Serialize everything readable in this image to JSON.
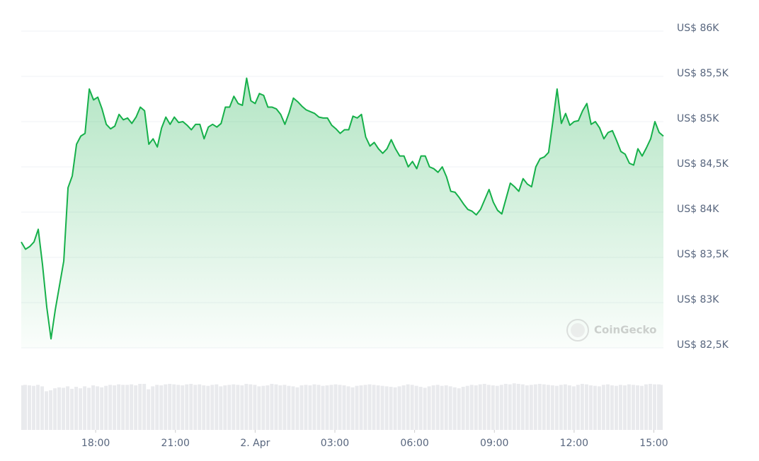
{
  "chart_data": {
    "type": "line",
    "watermark": "CoinGecko",
    "x": [
      15.2,
      15.36,
      15.52,
      15.68,
      15.84,
      16,
      16.16,
      16.32,
      16.48,
      16.64,
      16.8,
      16.96,
      17.12,
      17.28,
      17.44,
      17.6,
      17.76,
      17.92,
      18.08,
      18.24,
      18.4,
      18.56,
      18.72,
      18.88,
      19.04,
      19.2,
      19.36,
      19.52,
      19.68,
      19.84,
      20,
      20.16,
      20.32,
      20.48,
      20.64,
      20.8,
      20.96,
      21.12,
      21.28,
      21.44,
      21.6,
      21.76,
      21.92,
      22.08,
      22.24,
      22.4,
      22.56,
      22.72,
      22.88,
      23.04,
      23.2,
      23.36,
      23.52,
      23.68,
      23.84,
      24,
      24.16,
      24.32,
      24.48,
      24.64,
      24.8,
      24.96,
      25.12,
      25.28,
      25.44,
      25.6,
      25.76,
      25.92,
      26.08,
      26.24,
      26.4,
      26.56,
      26.72,
      26.88,
      27.04,
      27.2,
      27.36,
      27.52,
      27.68,
      27.84,
      28,
      28.16,
      28.32,
      28.48,
      28.64,
      28.8,
      28.96,
      29.12,
      29.28,
      29.44,
      29.6,
      29.76,
      29.92,
      30.08,
      30.24,
      30.4,
      30.56,
      30.72,
      30.88,
      31.04,
      31.2,
      31.36,
      31.52,
      31.68,
      31.84,
      32,
      32.16,
      32.32,
      32.48,
      32.64,
      32.8,
      32.96,
      33.12,
      33.28,
      33.44,
      33.6,
      33.76,
      33.92,
      34.08,
      34.24,
      34.4,
      34.56,
      34.72,
      34.88,
      35.04,
      35.2,
      35.36,
      35.52,
      35.68,
      35.84,
      36,
      36.16,
      36.32,
      36.48,
      36.64,
      36.8,
      36.96,
      37.12,
      37.28,
      37.44,
      37.6,
      37.76,
      37.92,
      38.08,
      38.24,
      38.4,
      38.56,
      38.72,
      38.88,
      39.04,
      39.2,
      39.36
    ],
    "series": [
      {
        "name": "Price",
        "color": "#16b04a",
        "values": [
          83670,
          83590,
          83620,
          83670,
          83810,
          83420,
          82950,
          82600,
          82920,
          83190,
          83460,
          84270,
          84400,
          84750,
          84840,
          84870,
          85360,
          85240,
          85270,
          85140,
          84970,
          84920,
          84950,
          85080,
          85020,
          85040,
          84980,
          85050,
          85160,
          85120,
          84750,
          84810,
          84720,
          84930,
          85050,
          84970,
          85050,
          84990,
          85000,
          84960,
          84910,
          84970,
          84970,
          84810,
          84940,
          84970,
          84940,
          84980,
          85160,
          85160,
          85280,
          85200,
          85180,
          85480,
          85230,
          85200,
          85310,
          85290,
          85160,
          85160,
          85140,
          85080,
          84970,
          85100,
          85260,
          85220,
          85170,
          85130,
          85110,
          85090,
          85050,
          85040,
          85040,
          84960,
          84920,
          84870,
          84910,
          84910,
          85060,
          85040,
          85080,
          84830,
          84730,
          84770,
          84700,
          84650,
          84700,
          84800,
          84700,
          84620,
          84620,
          84500,
          84560,
          84480,
          84620,
          84620,
          84500,
          84480,
          84440,
          84500,
          84390,
          84230,
          84220,
          84160,
          84090,
          84030,
          84010,
          83970,
          84030,
          84140,
          84250,
          84110,
          84020,
          83980,
          84150,
          84320,
          84280,
          84230,
          84370,
          84310,
          84280,
          84500,
          84590,
          84610,
          84660,
          85000,
          85360,
          84980,
          85090,
          84960,
          85000,
          85010,
          85120,
          85200,
          84970,
          85000,
          84930,
          84810,
          84880,
          84900,
          84790,
          84670,
          84640,
          84540,
          84520,
          84700,
          84620,
          84710,
          84810,
          85000,
          84880,
          84840
        ]
      },
      {
        "name": "Volume",
        "color": "#e9eaed",
        "axis": "y2",
        "values": [
          90,
          91,
          90,
          89,
          91,
          88,
          78,
          80,
          84,
          86,
          85,
          88,
          83,
          87,
          84,
          88,
          85,
          90,
          88,
          86,
          89,
          91,
          90,
          92,
          91,
          91,
          92,
          90,
          93,
          93,
          82,
          88,
          91,
          90,
          92,
          93,
          92,
          91,
          90,
          92,
          93,
          91,
          92,
          90,
          89,
          91,
          92,
          88,
          90,
          91,
          92,
          91,
          90,
          93,
          92,
          91,
          88,
          89,
          90,
          93,
          92,
          90,
          91,
          89,
          88,
          86,
          90,
          91,
          90,
          92,
          91,
          89,
          90,
          91,
          92,
          91,
          90,
          88,
          86,
          89,
          90,
          91,
          92,
          91,
          90,
          89,
          88,
          87,
          86,
          88,
          90,
          92,
          91,
          89,
          87,
          85,
          88,
          90,
          91,
          89,
          90,
          88,
          86,
          84,
          87,
          89,
          91,
          90,
          92,
          93,
          91,
          90,
          89,
          91,
          93,
          92,
          94,
          93,
          92,
          90,
          91,
          92,
          93,
          92,
          91,
          90,
          89,
          91,
          92,
          90,
          88,
          91,
          93,
          92,
          90,
          89,
          88,
          91,
          92,
          90,
          89,
          91,
          90,
          92,
          91,
          90,
          89,
          92,
          93,
          92,
          92,
          91
        ]
      }
    ],
    "xlim": [
      15.2,
      39.36
    ],
    "xticks": [
      {
        "value": 18,
        "label": "18:00"
      },
      {
        "value": 21,
        "label": "21:00"
      },
      {
        "value": 24,
        "label": "2. Apr"
      },
      {
        "value": 27,
        "label": "03:00"
      },
      {
        "value": 30,
        "label": "06:00"
      },
      {
        "value": 33,
        "label": "09:00"
      },
      {
        "value": 36,
        "label": "12:00"
      },
      {
        "value": 39,
        "label": "15:00"
      }
    ],
    "ylim": [
      82500,
      86000
    ],
    "yticks": [
      {
        "value": 82500,
        "label": "US$ 82,5K"
      },
      {
        "value": 83000,
        "label": "US$ 83K"
      },
      {
        "value": 83500,
        "label": "US$ 83,5K"
      },
      {
        "value": 84000,
        "label": "US$ 84K"
      },
      {
        "value": 84500,
        "label": "US$ 84,5K"
      },
      {
        "value": 85000,
        "label": "US$ 85K"
      },
      {
        "value": 85500,
        "label": "US$ 85,5K"
      },
      {
        "value": 86000,
        "label": "US$ 86K"
      }
    ],
    "y2lim": [
      0,
      100
    ],
    "grid": true
  }
}
